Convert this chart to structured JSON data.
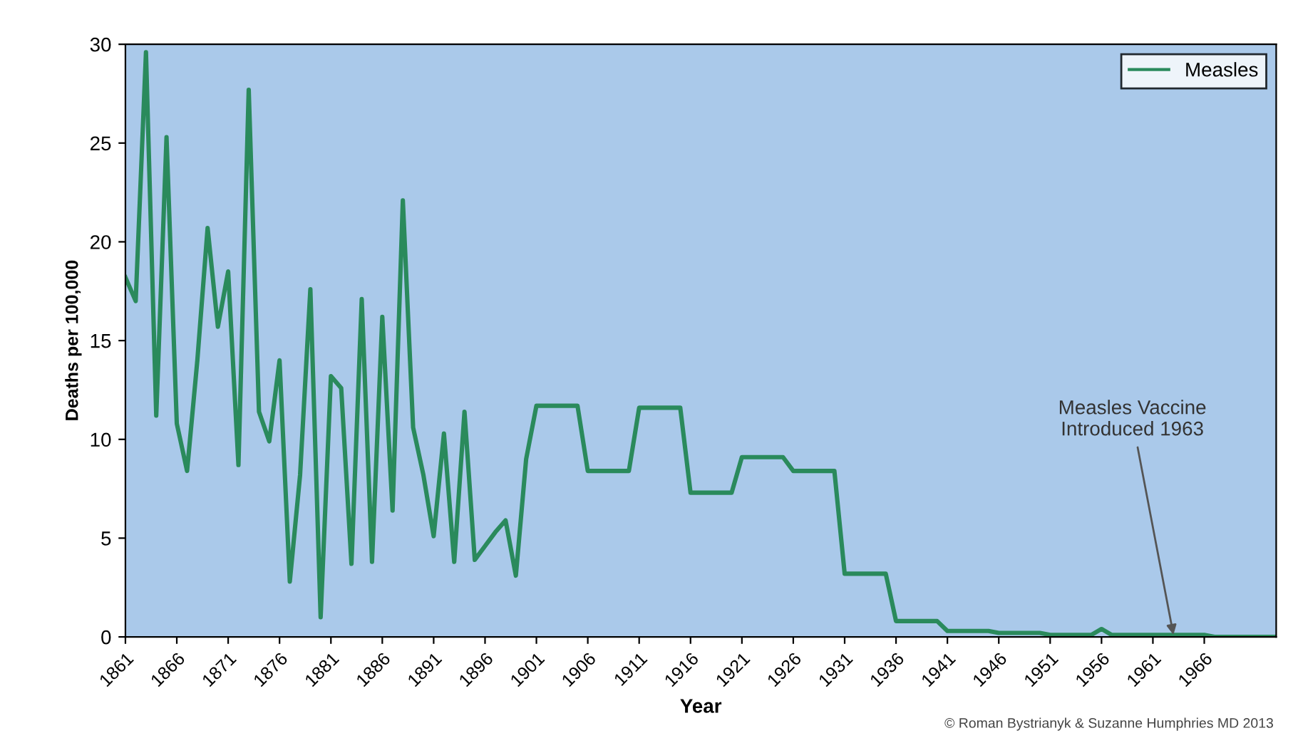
{
  "chart_data": {
    "type": "line",
    "xlabel": "Year",
    "ylabel": "Deaths per 100,000",
    "x": [
      1861,
      1862,
      1863,
      1864,
      1865,
      1866,
      1867,
      1868,
      1869,
      1870,
      1871,
      1872,
      1873,
      1874,
      1875,
      1876,
      1877,
      1878,
      1879,
      1880,
      1881,
      1882,
      1883,
      1884,
      1885,
      1886,
      1887,
      1888,
      1889,
      1890,
      1891,
      1892,
      1893,
      1894,
      1895,
      1896,
      1897,
      1898,
      1899,
      1900,
      1901,
      1902,
      1903,
      1904,
      1905,
      1906,
      1907,
      1908,
      1909,
      1910,
      1911,
      1912,
      1913,
      1914,
      1915,
      1916,
      1917,
      1918,
      1919,
      1920,
      1921,
      1922,
      1923,
      1924,
      1925,
      1926,
      1927,
      1928,
      1929,
      1930,
      1931,
      1932,
      1933,
      1934,
      1935,
      1936,
      1937,
      1938,
      1939,
      1940,
      1941,
      1942,
      1943,
      1944,
      1945,
      1946,
      1947,
      1948,
      1949,
      1950,
      1951,
      1952,
      1953,
      1954,
      1955,
      1956,
      1957,
      1958,
      1959,
      1960,
      1961,
      1962,
      1963,
      1964,
      1965,
      1966,
      1967,
      1968,
      1969,
      1970,
      1971,
      1972,
      1973
    ],
    "series": [
      {
        "name": "Measles",
        "color": "#2a8a5c",
        "values": [
          18.2,
          17.0,
          29.6,
          11.2,
          25.3,
          10.8,
          8.4,
          14.0,
          20.7,
          15.7,
          18.5,
          8.7,
          27.7,
          11.4,
          9.9,
          14.0,
          2.8,
          8.2,
          17.6,
          1.0,
          13.2,
          12.6,
          3.7,
          17.1,
          3.8,
          16.2,
          6.4,
          22.1,
          10.6,
          8.2,
          5.1,
          10.3,
          3.8,
          11.4,
          3.9,
          4.6,
          5.3,
          5.9,
          3.1,
          9.0,
          11.7,
          11.7,
          11.7,
          11.7,
          11.7,
          8.4,
          8.4,
          8.4,
          8.4,
          8.4,
          11.6,
          11.6,
          11.6,
          11.6,
          11.6,
          7.3,
          7.3,
          7.3,
          7.3,
          7.3,
          9.1,
          9.1,
          9.1,
          9.1,
          9.1,
          8.4,
          8.4,
          8.4,
          8.4,
          8.4,
          3.2,
          3.2,
          3.2,
          3.2,
          3.2,
          0.8,
          0.8,
          0.8,
          0.8,
          0.8,
          0.3,
          0.3,
          0.3,
          0.3,
          0.3,
          0.2,
          0.2,
          0.2,
          0.2,
          0.2,
          0.1,
          0.1,
          0.1,
          0.1,
          0.1,
          0.4,
          0.1,
          0.1,
          0.1,
          0.1,
          0.1,
          0.1,
          0.1,
          0.1,
          0.1,
          0.1,
          0,
          0,
          0,
          0,
          0,
          0,
          0
        ]
      }
    ],
    "xlim": [
      1861,
      1973
    ],
    "xticks": [
      1861,
      1866,
      1871,
      1876,
      1881,
      1886,
      1891,
      1896,
      1901,
      1906,
      1911,
      1916,
      1921,
      1926,
      1931,
      1936,
      1941,
      1946,
      1951,
      1956,
      1961,
      1966
    ],
    "ylim": [
      0,
      30
    ],
    "yticks": [
      0,
      5,
      10,
      15,
      20,
      25,
      30
    ],
    "grid": false,
    "legend": "top right",
    "marker": "none",
    "line_style": "solid",
    "annotations": [
      {
        "text": "Measles Vaccine\nIntroduced 1963",
        "x": 1963,
        "y": 0.1
      },
      "© Roman Bystrianyk & Suzanne Humphries MD 2013"
    ]
  }
}
